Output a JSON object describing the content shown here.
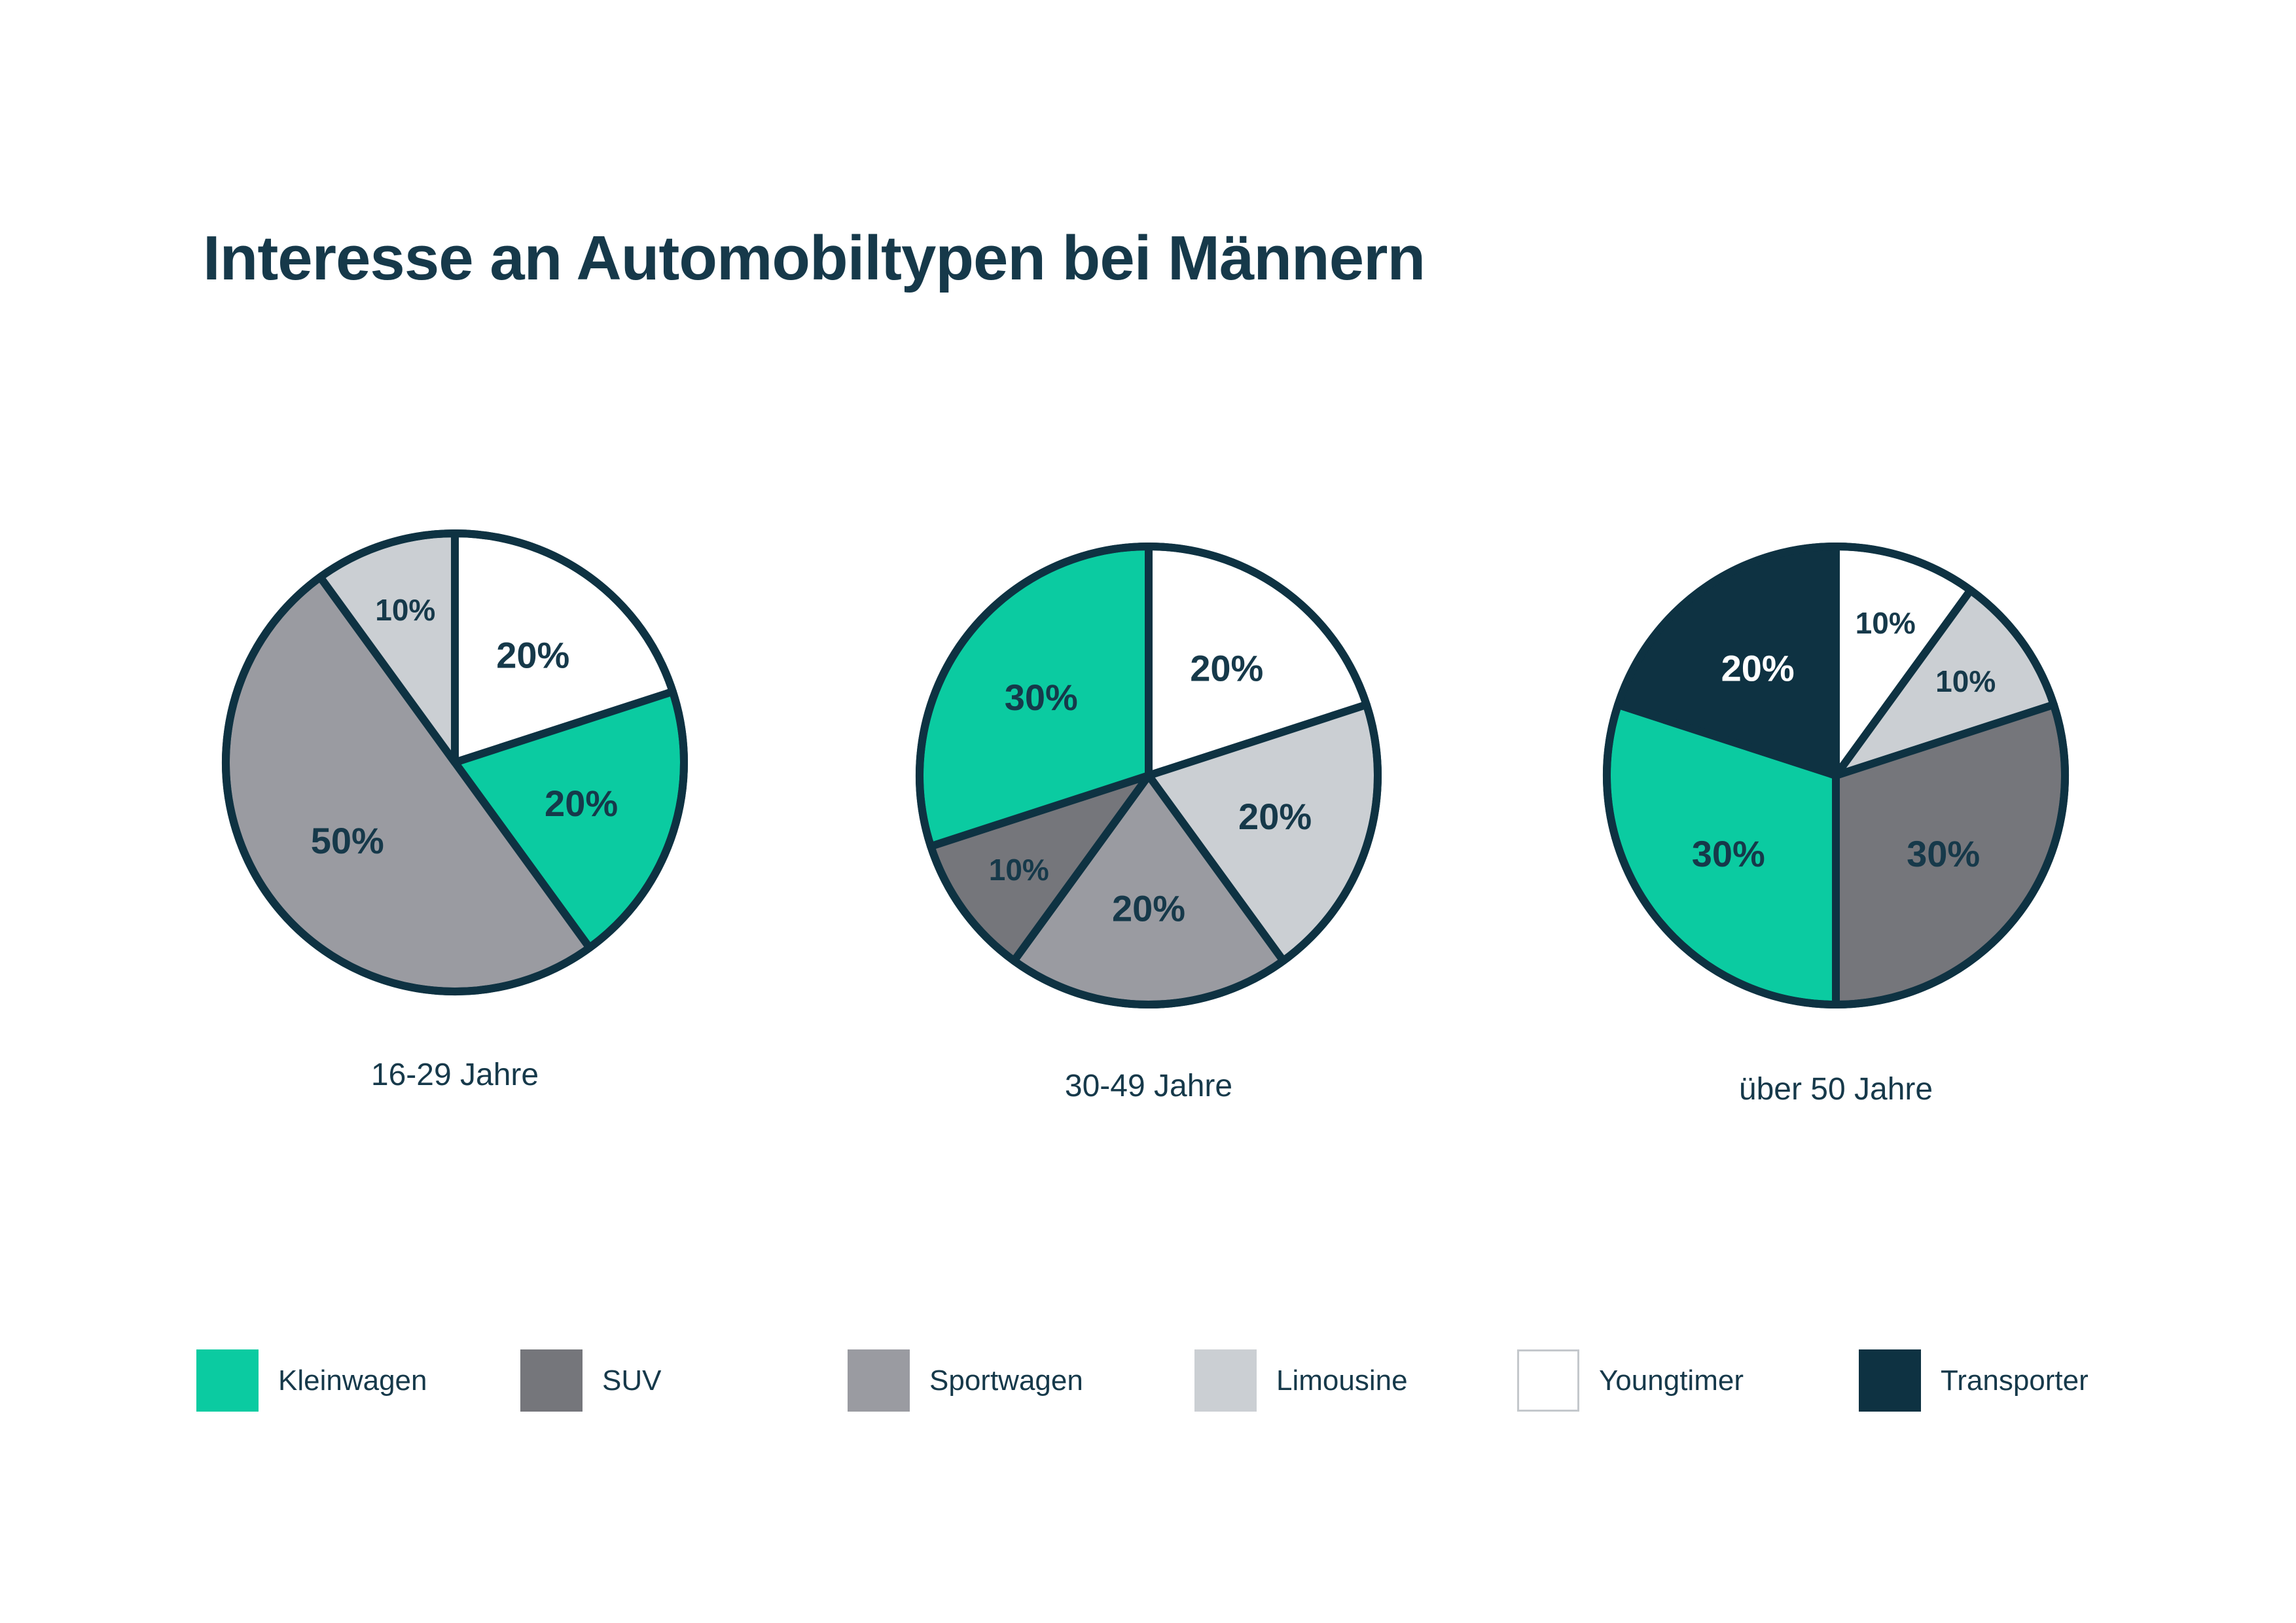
{
  "title": "Interesse an Automobiltypen bei Männern",
  "colors": {
    "text": "#16394a",
    "outline": "#0e3242",
    "accent_green": "#0bcba1"
  },
  "legend": [
    {
      "label": "Kleinwagen",
      "color": "#0bcba1"
    },
    {
      "label": "SUV",
      "color": "#75767b"
    },
    {
      "label": "Sportwagen",
      "color": "#9a9ba1"
    },
    {
      "label": "Limousine",
      "color": "#cbcfd3"
    },
    {
      "label": "Youngtimer",
      "color": "#ffffff",
      "border": "#c4c8cc"
    },
    {
      "label": "Transporter",
      "color": "#0e3242"
    }
  ],
  "chart_data": [
    {
      "type": "pie",
      "title": "16-29 Jahre",
      "start_angle": "12-o-clock",
      "direction": "clockwise",
      "value_suffix": "%",
      "segments": [
        {
          "label": "Youngtimer",
          "value": 20
        },
        {
          "label": "Kleinwagen",
          "value": 20
        },
        {
          "label": "Sportwagen",
          "value": 50
        },
        {
          "label": "Limousine",
          "value": 10
        }
      ]
    },
    {
      "type": "pie",
      "title": "30-49 Jahre",
      "start_angle": "12-o-clock",
      "direction": "clockwise",
      "value_suffix": "%",
      "segments": [
        {
          "label": "Youngtimer",
          "value": 20
        },
        {
          "label": "Limousine",
          "value": 20
        },
        {
          "label": "Sportwagen",
          "value": 20
        },
        {
          "label": "SUV",
          "value": 10
        },
        {
          "label": "Kleinwagen",
          "value": 30
        }
      ]
    },
    {
      "type": "pie",
      "title": "über 50 Jahre",
      "start_angle": "12-o-clock",
      "direction": "clockwise",
      "value_suffix": "%",
      "segments": [
        {
          "label": "Youngtimer",
          "value": 10
        },
        {
          "label": "Limousine",
          "value": 10
        },
        {
          "label": "SUV",
          "value": 30
        },
        {
          "label": "Kleinwagen",
          "value": 30
        },
        {
          "label": "Transporter",
          "value": 20
        }
      ]
    }
  ]
}
